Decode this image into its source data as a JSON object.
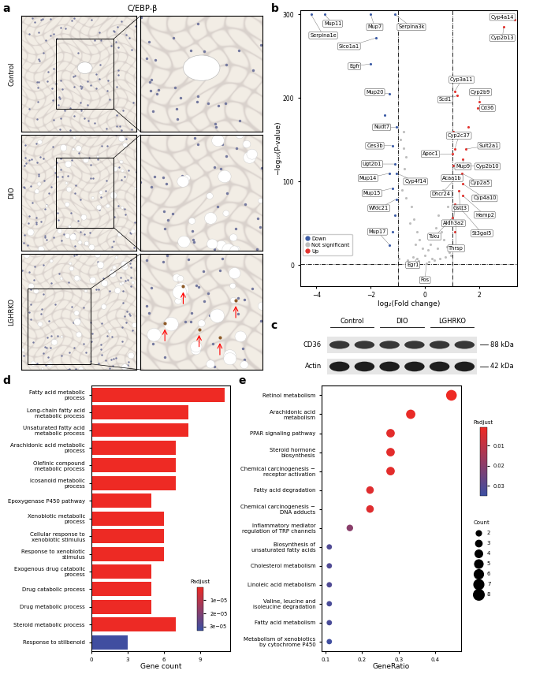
{
  "ihc": {
    "panel": "a",
    "title": "C/EBP-β",
    "rows": [
      "Control",
      "DIO",
      "LGHRKO"
    ]
  },
  "western_blot": {
    "panel": "c",
    "lanes": [
      "Control",
      "DIO",
      "LGHRKO"
    ],
    "bands": [
      {
        "name": "CD36",
        "size": "88 kDa"
      },
      {
        "name": "Actin",
        "size": "42 kDa"
      }
    ]
  },
  "chart_data": [
    {
      "type": "scatter",
      "panel": "b",
      "xlabel": "log₂(Fold change)",
      "ylabel": "−log₁₀(P-value)",
      "xlim": [
        -4.6,
        3.4
      ],
      "ylim": [
        -25,
        305
      ],
      "xticks": [
        {
          "value": -4,
          "label": "−4"
        },
        {
          "value": -2,
          "label": "−2"
        },
        0,
        2
      ],
      "yticks": [
        0,
        100,
        200,
        300
      ],
      "thresholds": {
        "x": [
          -1,
          1
        ],
        "y": 1.3
      },
      "legend": "lower left",
      "series": [
        {
          "name": "Down",
          "color": "#3B5BA5",
          "x": [
            -4.2,
            -3.7,
            -2.0,
            -1.1,
            -1.8,
            -2.0,
            -1.3,
            -1.05,
            -1.2,
            -1.1,
            -1.05,
            -1.3,
            -1.2,
            -1.05,
            -1.3,
            -1.1,
            -1.5,
            -1.2
          ],
          "values": [
            300,
            300,
            300,
            300,
            272,
            241,
            205,
            165,
            143,
            121,
            110,
            110,
            92,
            79,
            24,
            60,
            180,
            40
          ],
          "labels": [
            "Serpina1e",
            "Mup11",
            "Mup7",
            "Serpina3k",
            "Slco1a1",
            "Egfr",
            "Mup20",
            "Nudt7",
            "Ces3b",
            "Ugt2b1",
            "Cyp4f14",
            "Mup14",
            "Mup15",
            "Wfdc21",
            "Mup17",
            null,
            null,
            null
          ]
        },
        {
          "name": "Not significant",
          "color": "#BEBEBE",
          "x": [
            -0.3,
            0.05,
            -0.9,
            -0.8,
            -0.7,
            -0.75,
            -0.6,
            -0.85,
            -0.5,
            -0.4,
            -0.3,
            -0.2,
            -0.1,
            0.0,
            0.1,
            0.2,
            0.3,
            0.4,
            0.5,
            0.6,
            0.7,
            0.8,
            0.9,
            -0.95,
            -0.65,
            -0.45,
            -0.25,
            0.15,
            0.35,
            0.55,
            0.75,
            0.95,
            -0.7,
            -0.55,
            0.85,
            0.65,
            0.45,
            -0.35,
            0.25,
            -0.8
          ],
          "values": [
            8,
            2,
            150,
            160,
            130,
            115,
            100,
            90,
            70,
            55,
            40,
            30,
            20,
            12,
            18,
            25,
            35,
            45,
            60,
            40,
            30,
            22,
            15,
            8,
            6,
            10,
            5,
            4,
            6,
            8,
            10,
            12,
            80,
            50,
            70,
            90,
            20,
            25,
            8,
            140
          ],
          "labels": [
            "Egr1",
            "Fos",
            null,
            null,
            null,
            null,
            null,
            null,
            null,
            null,
            null,
            null,
            null,
            null,
            null,
            null,
            null,
            null,
            null,
            null,
            null,
            null,
            null,
            null,
            null,
            null,
            null,
            null,
            null,
            null,
            null,
            null,
            null,
            null,
            null,
            null,
            null,
            null,
            null,
            null
          ]
        },
        {
          "name": "Up",
          "color": "#E3342F",
          "x": [
            3.3,
            2.9,
            1.1,
            1.2,
            2.0,
            1.95,
            1.1,
            1.4,
            1.5,
            1.02,
            1.5,
            1.05,
            1.35,
            1.1,
            1.4,
            1.25,
            1.4,
            1.1,
            1.25,
            1.02,
            1.15,
            1.05,
            1.6,
            1.1
          ],
          "values": [
            294,
            285,
            208,
            203,
            196,
            188,
            139,
            127,
            139,
            133,
            119,
            119,
            110,
            103,
            97,
            89,
            83,
            73,
            70,
            57,
            49,
            160,
            165,
            40
          ],
          "labels": [
            "Cyp4a14",
            "Cyp2b13",
            "Cyp3a11",
            "Scd1",
            "Cyp2b9",
            "Cd36",
            "Cyp2c37",
            "Mup9",
            "Sult2a1",
            "Apoc1",
            "Cyp2b10",
            "Acaa1b",
            "Cyp2a5",
            "Dhcr24",
            "Cyp4a10",
            "Gstt3",
            "Hamp2",
            "Aldh3a2",
            "St3gal5",
            "Tsku",
            "Thrsp",
            null,
            null,
            null
          ]
        }
      ]
    },
    {
      "type": "bar",
      "panel": "d",
      "orientation": "horizontal",
      "xlabel": "Gene count",
      "categories": [
        "Fatty acid metabolic process",
        "Long-chain fatty acid metabolic process",
        "Unsaturated fatty acid metabolic process",
        "Arachidonic acid metabolic process",
        "Olefinic compound metabolic process",
        "Icosanoid metabolic process",
        "Epoxygenase P450 pathway",
        "Xenobiotic metabolic process",
        "Cellular response to xenobiotic stimulus",
        "Response to xenobiotic stimulus",
        "Exogenous drug catabolic process",
        "Drug catabolic process",
        "Drug metabolic process",
        "Steroid metabolic process",
        "Response to stilbenoid"
      ],
      "values": [
        11,
        8,
        8,
        7,
        7,
        7,
        5,
        6,
        6,
        6,
        5,
        5,
        5,
        7,
        3
      ],
      "padjust": [
        1e-07,
        1e-07,
        1e-07,
        1e-07,
        1e-07,
        1e-07,
        1e-07,
        2e-07,
        2e-07,
        2e-07,
        3e-07,
        3e-07,
        3e-07,
        3e-07,
        3.2e-05
      ],
      "xlim": [
        0,
        11.5
      ],
      "xticks": [
        0,
        3,
        6,
        9
      ],
      "colorbar": {
        "label": "Padjust",
        "range": [
          0,
          3.3e-05
        ],
        "ticks": [
          {
            "value": 1e-05,
            "label": "1e−05"
          },
          {
            "value": 2e-05,
            "label": "2e−05"
          },
          {
            "value": 3e-05,
            "label": "3e−05"
          }
        ]
      }
    },
    {
      "type": "scatter",
      "panel": "e",
      "xlabel": "GeneRatio",
      "categories": [
        "Retinol metabolism",
        "Arachidonic acid metabolism",
        "PPAR signaling pathway",
        "Steroid hormone biosynthesis",
        "Chemical carcinogenesis − receptor activation",
        "Fatty acid degradation",
        "Chemical carcinogenesis − DNA adducts",
        "Inflammatory mediator regulation of TRP channels",
        "Biosynthesis of unsaturated fatty acids",
        "Cholesterol metabolism",
        "Linoleic acid metabolism",
        "Valine, leucine and isoleucine degradation",
        "Fatty acid metabolism",
        "Metabolism of xenobiotics by cytochrome P450"
      ],
      "values": [
        0.444,
        0.333,
        0.278,
        0.278,
        0.278,
        0.222,
        0.222,
        0.167,
        0.111,
        0.111,
        0.111,
        0.111,
        0.111,
        0.111
      ],
      "counts": [
        8,
        6,
        5,
        5,
        5,
        4,
        4,
        3,
        2,
        2,
        2,
        2,
        2,
        2
      ],
      "padjust": [
        0.001,
        0.002,
        0.003,
        0.003,
        0.003,
        0.004,
        0.004,
        0.02,
        0.031,
        0.031,
        0.031,
        0.032,
        0.032,
        0.034
      ],
      "xlim": [
        0.09,
        0.47
      ],
      "xticks": [
        0.1,
        0.2,
        0.3,
        0.4
      ],
      "colorbar": {
        "label": "Padjust",
        "range": [
          0.001,
          0.035
        ],
        "ticks": [
          0.01,
          0.02,
          0.03
        ]
      },
      "size_legend": {
        "title": "Count",
        "values": [
          2,
          3,
          4,
          5,
          6,
          7,
          8
        ]
      }
    }
  ]
}
